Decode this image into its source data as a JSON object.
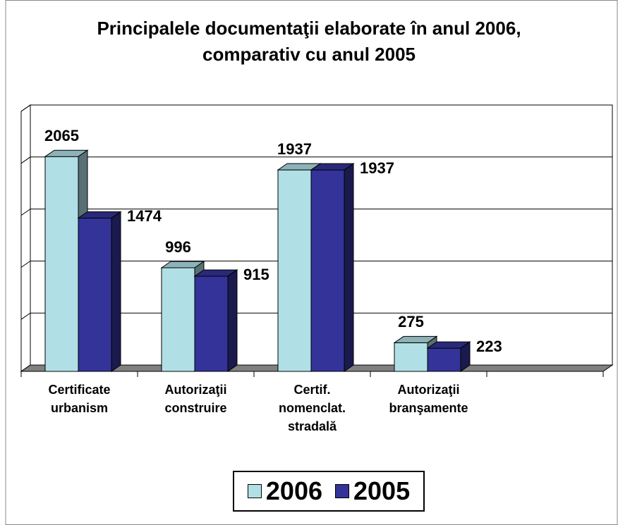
{
  "chart_data": {
    "type": "bar3d",
    "title": "Principalele documentaţii elaborate în anul 2006,\ncomparativ cu anul 2005",
    "categories": [
      "Certificate\nurbanism",
      "Autorizaţii\nconstruire",
      "Certif.\nnomenclat.\nstradală",
      "Autorizaţii\nbranşamente",
      null
    ],
    "series": [
      {
        "name": "2006",
        "color": "#b0e0e6",
        "values": [
          2065,
          996,
          1937,
          275,
          null
        ]
      },
      {
        "name": "2005",
        "color": "#333399",
        "values": [
          1474,
          915,
          1937,
          223,
          null
        ]
      }
    ],
    "ylim": [
      0,
      2500
    ],
    "yticks": [
      0,
      500,
      1000,
      1500,
      2000,
      2500
    ],
    "grid": true,
    "legend": "bottom"
  }
}
